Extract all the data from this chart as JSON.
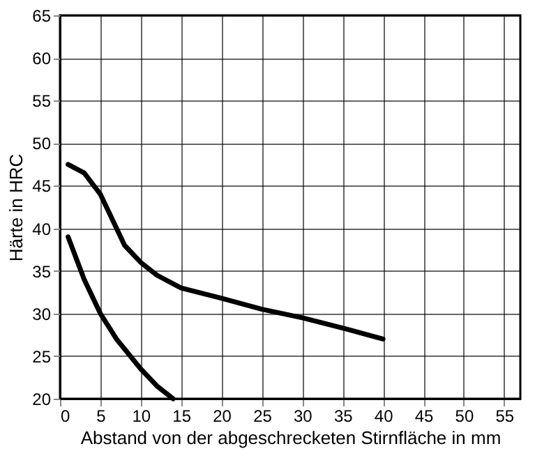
{
  "chart_data": {
    "type": "line",
    "xlabel": "Abstand von der abgeschrecketen Stirnfläche in mm",
    "ylabel": "Härte in HRC",
    "series": [
      {
        "color": "#000000",
        "x": [
          1,
          3,
          5,
          6,
          7,
          8,
          10,
          12,
          15,
          20,
          25,
          30,
          35,
          40
        ],
        "values": [
          47.5,
          46.5,
          44,
          42,
          40,
          38,
          36,
          34.5,
          33,
          31.8,
          30.5,
          29.5,
          28.3,
          27
        ]
      },
      {
        "color": "#000000",
        "x": [
          1,
          3,
          5,
          7,
          10,
          12,
          14
        ],
        "values": [
          39,
          34,
          30,
          27,
          23.5,
          21.5,
          20
        ]
      }
    ],
    "xlim": [
      0,
      57
    ],
    "ylim": [
      20,
      65
    ],
    "xticks": [
      0,
      5,
      10,
      15,
      20,
      25,
      30,
      35,
      40,
      45,
      50,
      55
    ],
    "yticks": [
      20,
      25,
      30,
      35,
      40,
      45,
      50,
      55,
      60,
      65
    ],
    "grid": true,
    "legend": false,
    "marker": "none",
    "line_style": "solid"
  }
}
